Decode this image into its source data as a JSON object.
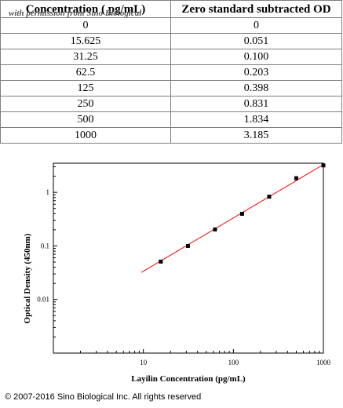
{
  "watermark": "with permission from Sino Biological",
  "table": {
    "headers": [
      "Concentration ( pg/mL)",
      "Zero standard subtracted OD"
    ],
    "rows": [
      [
        "0",
        "0"
      ],
      [
        "15.625",
        "0.051"
      ],
      [
        "31.25",
        "0.100"
      ],
      [
        "62.5",
        "0.203"
      ],
      [
        "125",
        "0.398"
      ],
      [
        "250",
        "0.831"
      ],
      [
        "500",
        "1.834"
      ],
      [
        "1000",
        "3.185"
      ]
    ]
  },
  "chart_data": {
    "type": "scatter",
    "title": "",
    "xlabel": "Layilin Concentration (pg/mL)",
    "ylabel": "Optical Density (450nm)",
    "x_scale": "log",
    "y_scale": "log",
    "xlim": [
      1,
      1000
    ],
    "ylim": [
      0.001,
      3.5
    ],
    "x_ticks": [
      {
        "value": 10,
        "label": "10"
      },
      {
        "value": 100,
        "label": "100"
      },
      {
        "value": 1000,
        "label": "1000"
      }
    ],
    "y_ticks": [
      {
        "value": 0.01,
        "label": "0.01"
      },
      {
        "value": 0.1,
        "label": "0.1"
      },
      {
        "value": 1,
        "label": "1"
      }
    ],
    "grid": false,
    "series": [
      {
        "marker": "square",
        "color": "#000000",
        "x": [
          15.625,
          31.25,
          62.5,
          125,
          250,
          500,
          1000
        ],
        "y": [
          0.051,
          0.1,
          0.203,
          0.398,
          0.831,
          1.834,
          3.185
        ]
      }
    ],
    "fit_line": {
      "color": "#ff0000",
      "x": [
        9.5,
        1000
      ],
      "y": [
        0.032,
        3.3
      ]
    }
  },
  "copyright": "© 2007-2016 Sino Biological Inc. All rights reserved"
}
